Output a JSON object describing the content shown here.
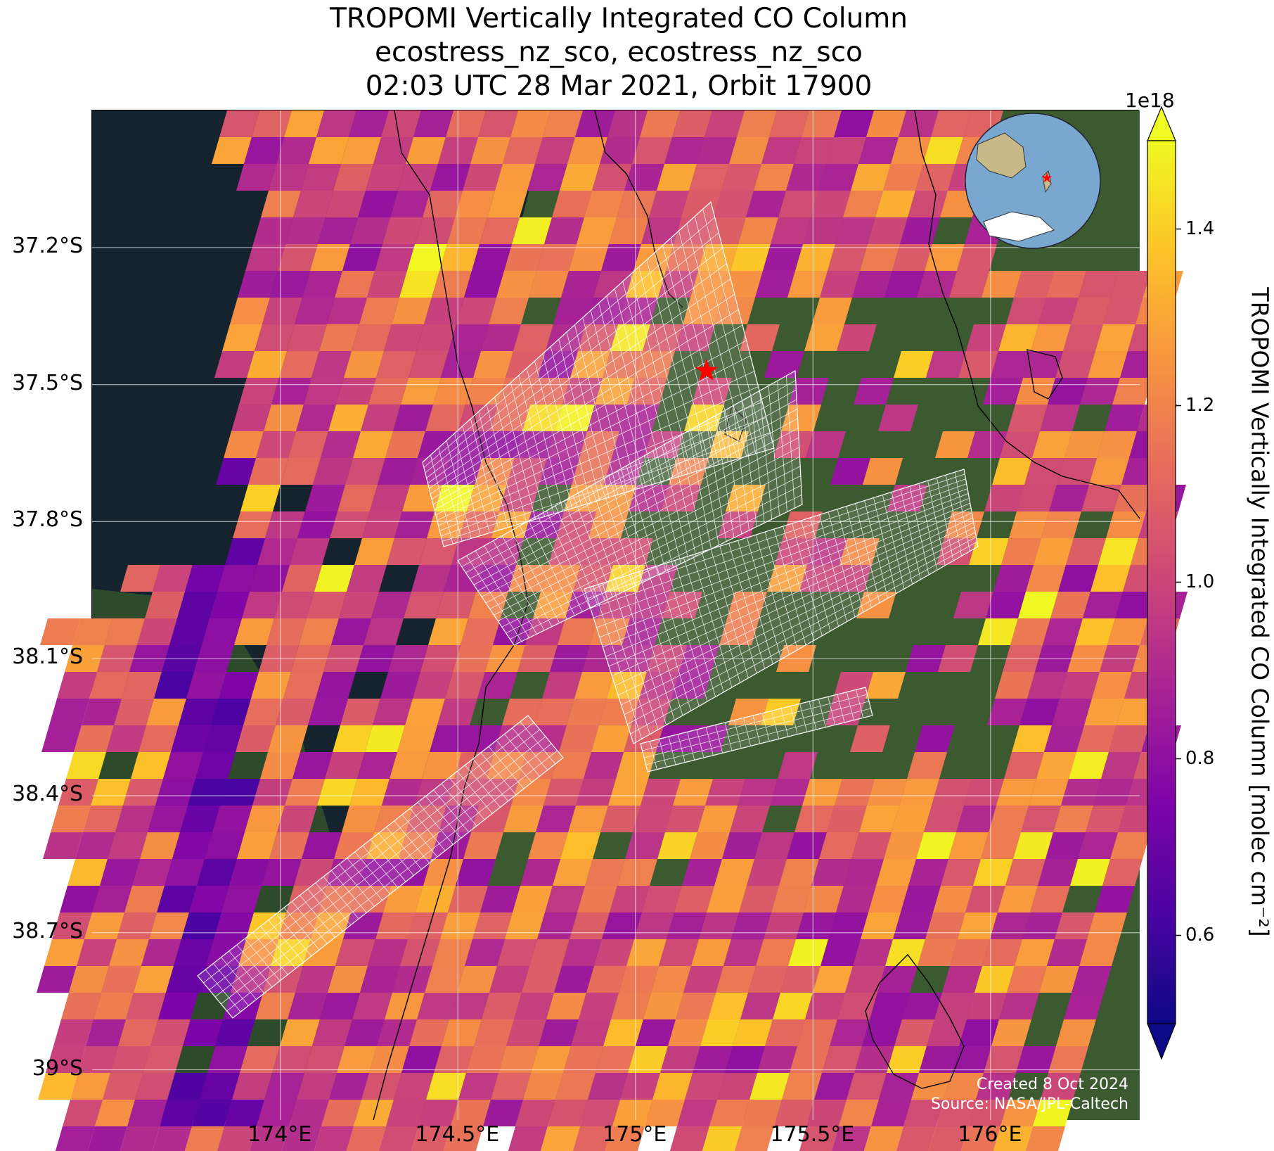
{
  "title": {
    "line1": "TROPOMI Vertically Integrated CO Column",
    "line2": "ecostress_nz_sco, ecostress_nz_sco",
    "line3": "02:03 UTC 28 Mar 2021, Orbit 17900"
  },
  "map": {
    "extent": {
      "lon_min": 173.47,
      "lon_max": 176.42,
      "lat_min": -39.11,
      "lat_max": -36.9
    },
    "lat_ticks": [
      {
        "value": -37.2,
        "label": "37.2°S"
      },
      {
        "value": -37.5,
        "label": "37.5°S"
      },
      {
        "value": -37.8,
        "label": "37.8°S"
      },
      {
        "value": -38.1,
        "label": "38.1°S"
      },
      {
        "value": -38.4,
        "label": "38.4°S"
      },
      {
        "value": -38.7,
        "label": "38.7°S"
      },
      {
        "value": -39.0,
        "label": "39°S"
      }
    ],
    "lon_ticks": [
      {
        "value": 174.0,
        "label": "174°E"
      },
      {
        "value": 174.5,
        "label": "174.5°E"
      },
      {
        "value": 175.0,
        "label": "175°E"
      },
      {
        "value": 175.5,
        "label": "175.5°E"
      },
      {
        "value": 176.0,
        "label": "176°E"
      }
    ],
    "gridlines": true,
    "target_marker": {
      "lon": 175.2,
      "lat": -37.47,
      "symbol": "star",
      "color": "#ff0000"
    },
    "ocean_color": "#14232e",
    "land_color": "#3c5a30",
    "overlay_color": "#ffffff",
    "inset_globe": {
      "placement": "top-right",
      "marker_color": "#ff0000"
    }
  },
  "colorbar": {
    "label": "TROPOMI Vertically Integrated CO Column [molec cm⁻²]",
    "exponent": "1e18",
    "vmin": 0.5,
    "vmax": 1.5,
    "colormap": "plasma",
    "extend": "both",
    "ticks": [
      {
        "value": 0.6,
        "label": "0.6"
      },
      {
        "value": 0.8,
        "label": "0.8"
      },
      {
        "value": 1.0,
        "label": "1.0"
      },
      {
        "value": 1.2,
        "label": "1.2"
      },
      {
        "value": 1.4,
        "label": "1.4"
      }
    ]
  },
  "credits": {
    "created": "Created 8 Oct 2024",
    "source": "Source: NASA/JPL-Caltech"
  }
}
